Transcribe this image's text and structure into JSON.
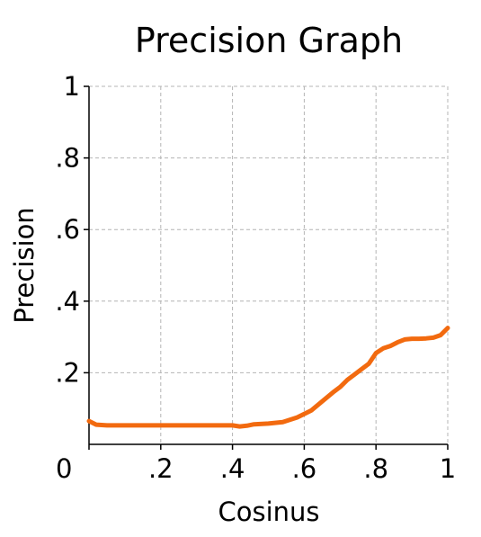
{
  "chart_data": {
    "type": "line",
    "title": "Precision Graph",
    "xlabel": "Cosinus",
    "ylabel": "Precision",
    "xlim": [
      0,
      1
    ],
    "ylim": [
      0,
      1
    ],
    "x_ticks": [
      {
        "value": 0,
        "label": "0"
      },
      {
        "value": 0.2,
        "label": ".2"
      },
      {
        "value": 0.4,
        "label": ".4"
      },
      {
        "value": 0.6,
        "label": ".6"
      },
      {
        "value": 0.8,
        "label": ".8"
      },
      {
        "value": 1,
        "label": "1"
      }
    ],
    "y_ticks": [
      {
        "value": 0.2,
        "label": ".2"
      },
      {
        "value": 0.4,
        "label": ".4"
      },
      {
        "value": 0.6,
        "label": ".6"
      },
      {
        "value": 0.8,
        "label": ".8"
      },
      {
        "value": 1,
        "label": "1"
      }
    ],
    "grid": true,
    "line_color": "#f26a0f",
    "series": [
      {
        "x": [
          0,
          0.01,
          0.02,
          0.05,
          0.1,
          0.2,
          0.3,
          0.4,
          0.42,
          0.44,
          0.46,
          0.5,
          0.54,
          0.58,
          0.62,
          0.65,
          0.68,
          0.7,
          0.72,
          0.74,
          0.76,
          0.78,
          0.8,
          0.82,
          0.84,
          0.86,
          0.88,
          0.9,
          0.92,
          0.94,
          0.96,
          0.98,
          1
        ],
        "y": [
          0.065,
          0.06,
          0.055,
          0.053,
          0.053,
          0.053,
          0.053,
          0.053,
          0.05,
          0.052,
          0.056,
          0.058,
          0.062,
          0.075,
          0.095,
          0.12,
          0.145,
          0.16,
          0.18,
          0.195,
          0.21,
          0.225,
          0.255,
          0.268,
          0.275,
          0.285,
          0.293,
          0.295,
          0.295,
          0.296,
          0.298,
          0.305,
          0.325
        ]
      }
    ]
  }
}
